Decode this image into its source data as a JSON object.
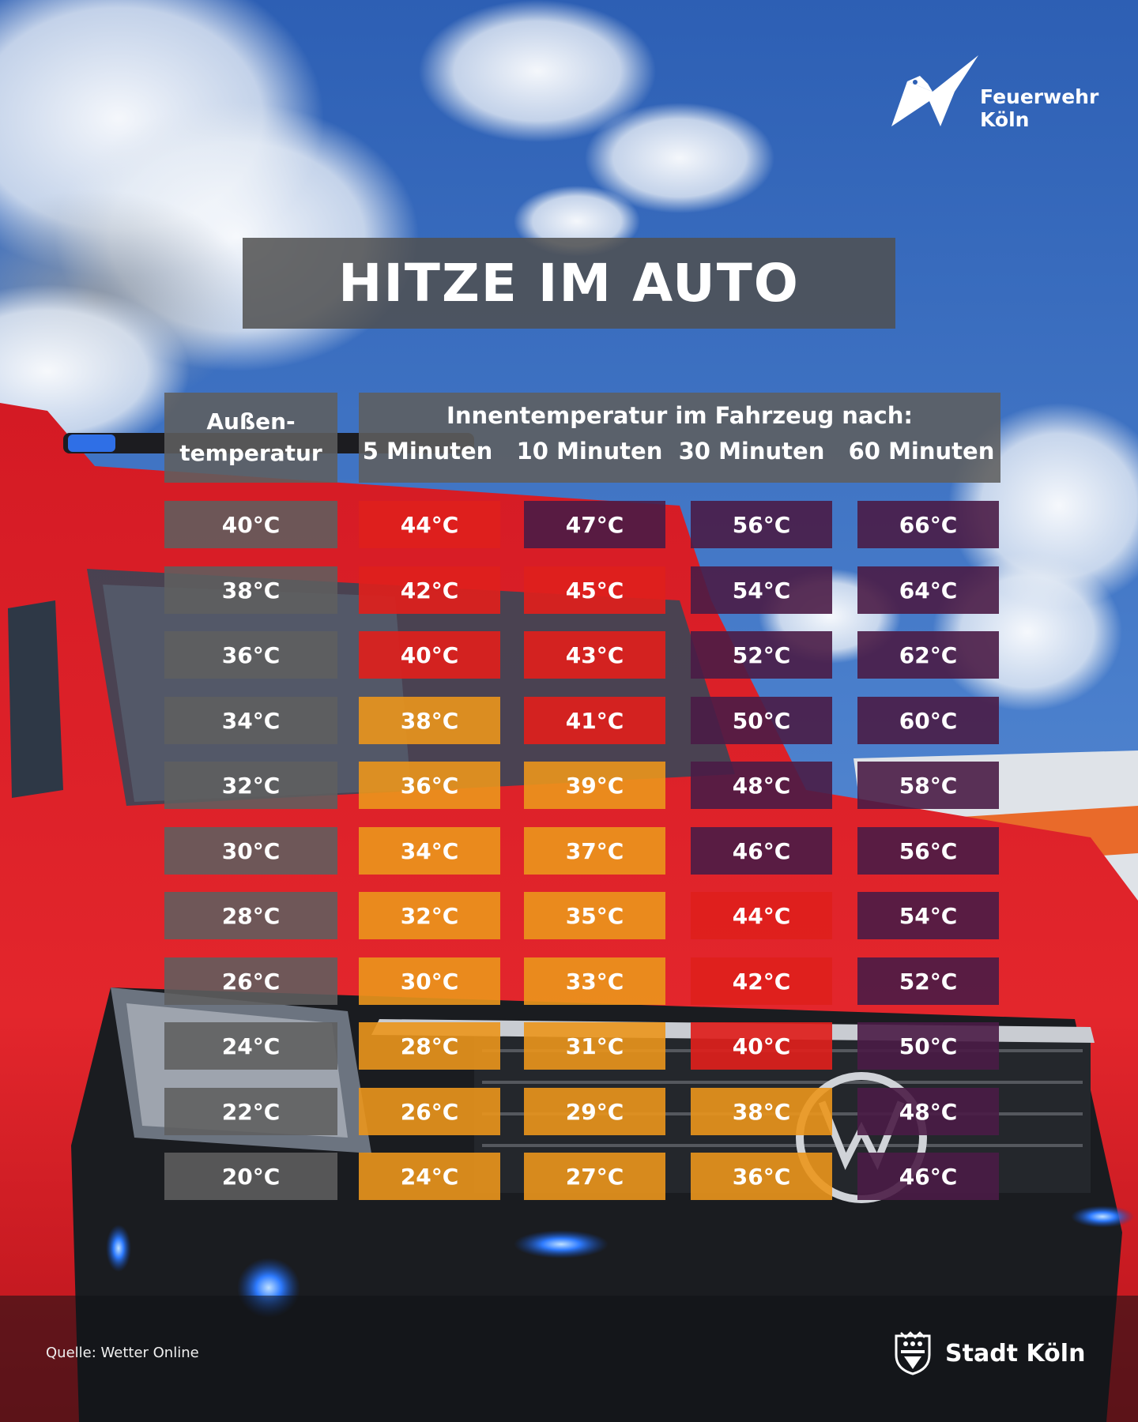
{
  "colors": {
    "orange": "rgba(235,150,28,0.90)",
    "red": "rgba(222,32,28,0.92)",
    "purple": "rgba(74,28,70,0.90)",
    "gray": "rgba(95,95,95,0.88)"
  },
  "logo_fw": {
    "line1": "Feuerwehr",
    "line2": "Köln",
    "icon": "eagle-flag-icon"
  },
  "title": "HITZE IM AUTO",
  "header": {
    "outside_line1": "Außen-",
    "outside_line2": "temperatur",
    "inside_caption": "Innentemperatur im Fahrzeug nach:",
    "columns": [
      "5 Minuten",
      "10 Minuten",
      "30 Minuten",
      "60 Minuten"
    ]
  },
  "rows": [
    {
      "outside": "40°C",
      "cells": [
        {
          "v": "44°C",
          "c": "red"
        },
        {
          "v": "47°C",
          "c": "purple"
        },
        {
          "v": "56°C",
          "c": "purple"
        },
        {
          "v": "66°C",
          "c": "purple"
        }
      ]
    },
    {
      "outside": "38°C",
      "cells": [
        {
          "v": "42°C",
          "c": "red"
        },
        {
          "v": "45°C",
          "c": "red"
        },
        {
          "v": "54°C",
          "c": "purple"
        },
        {
          "v": "64°C",
          "c": "purple"
        }
      ]
    },
    {
      "outside": "36°C",
      "cells": [
        {
          "v": "40°C",
          "c": "red"
        },
        {
          "v": "43°C",
          "c": "red"
        },
        {
          "v": "52°C",
          "c": "purple"
        },
        {
          "v": "62°C",
          "c": "purple"
        }
      ]
    },
    {
      "outside": "34°C",
      "cells": [
        {
          "v": "38°C",
          "c": "orange"
        },
        {
          "v": "41°C",
          "c": "red"
        },
        {
          "v": "50°C",
          "c": "purple"
        },
        {
          "v": "60°C",
          "c": "purple"
        }
      ]
    },
    {
      "outside": "32°C",
      "cells": [
        {
          "v": "36°C",
          "c": "orange"
        },
        {
          "v": "39°C",
          "c": "orange"
        },
        {
          "v": "48°C",
          "c": "purple"
        },
        {
          "v": "58°C",
          "c": "purple"
        }
      ]
    },
    {
      "outside": "30°C",
      "cells": [
        {
          "v": "34°C",
          "c": "orange"
        },
        {
          "v": "37°C",
          "c": "orange"
        },
        {
          "v": "46°C",
          "c": "purple"
        },
        {
          "v": "56°C",
          "c": "purple"
        }
      ]
    },
    {
      "outside": "28°C",
      "cells": [
        {
          "v": "32°C",
          "c": "orange"
        },
        {
          "v": "35°C",
          "c": "orange"
        },
        {
          "v": "44°C",
          "c": "red"
        },
        {
          "v": "54°C",
          "c": "purple"
        }
      ]
    },
    {
      "outside": "26°C",
      "cells": [
        {
          "v": "30°C",
          "c": "orange"
        },
        {
          "v": "33°C",
          "c": "orange"
        },
        {
          "v": "42°C",
          "c": "red"
        },
        {
          "v": "52°C",
          "c": "purple"
        }
      ]
    },
    {
      "outside": "24°C",
      "cells": [
        {
          "v": "28°C",
          "c": "orange"
        },
        {
          "v": "31°C",
          "c": "orange"
        },
        {
          "v": "40°C",
          "c": "red"
        },
        {
          "v": "50°C",
          "c": "purple"
        }
      ]
    },
    {
      "outside": "22°C",
      "cells": [
        {
          "v": "26°C",
          "c": "orange"
        },
        {
          "v": "29°C",
          "c": "orange"
        },
        {
          "v": "38°C",
          "c": "orange"
        },
        {
          "v": "48°C",
          "c": "purple"
        }
      ]
    },
    {
      "outside": "20°C",
      "cells": [
        {
          "v": "24°C",
          "c": "orange"
        },
        {
          "v": "27°C",
          "c": "orange"
        },
        {
          "v": "36°C",
          "c": "orange"
        },
        {
          "v": "46°C",
          "c": "purple"
        }
      ]
    }
  ],
  "source": "Quelle: Wetter Online",
  "logo_sk": {
    "text": "Stadt Köln",
    "icon": "cologne-crest-icon"
  }
}
